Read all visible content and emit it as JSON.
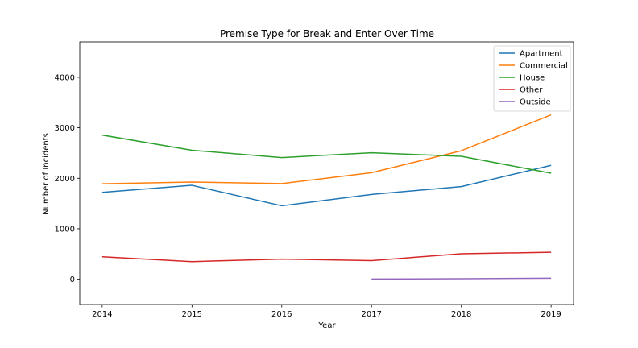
{
  "chart_data": {
    "type": "line",
    "title": "Premise Type for Break and Enter Over Time",
    "xlabel": "Year",
    "ylabel": "Number of Incidents",
    "xlim": [
      2013.75,
      2019.25
    ],
    "ylim": [
      -500,
      4700
    ],
    "x_ticks": [
      2014,
      2015,
      2016,
      2017,
      2018,
      2019
    ],
    "y_ticks": [
      0,
      1000,
      2000,
      3000,
      4000
    ],
    "grid": false,
    "legend_position": "top-right",
    "series": [
      {
        "name": "Apartment",
        "color": "#1f77b4",
        "points": [
          [
            2014,
            1720
          ],
          [
            2015,
            1860
          ],
          [
            2016,
            1455
          ],
          [
            2017,
            1680
          ],
          [
            2018,
            1835
          ],
          [
            2019,
            2255
          ]
        ]
      },
      {
        "name": "Commercial",
        "color": "#ff7f0e",
        "points": [
          [
            2014,
            1890
          ],
          [
            2015,
            1925
          ],
          [
            2016,
            1895
          ],
          [
            2017,
            2110
          ],
          [
            2018,
            2545
          ],
          [
            2019,
            3255
          ]
        ]
      },
      {
        "name": "House",
        "color": "#2ca02c",
        "points": [
          [
            2014,
            2855
          ],
          [
            2015,
            2555
          ],
          [
            2016,
            2410
          ],
          [
            2017,
            2505
          ],
          [
            2018,
            2435
          ],
          [
            2019,
            2100
          ]
        ]
      },
      {
        "name": "Other",
        "color": "#d62728",
        "points": [
          [
            2014,
            445
          ],
          [
            2015,
            350
          ],
          [
            2016,
            400
          ],
          [
            2017,
            370
          ],
          [
            2018,
            505
          ],
          [
            2019,
            535
          ]
        ]
      },
      {
        "name": "Outside",
        "color": "#9467bd",
        "points": [
          [
            2017,
            5
          ],
          [
            2018,
            10
          ],
          [
            2019,
            20
          ]
        ]
      }
    ]
  }
}
